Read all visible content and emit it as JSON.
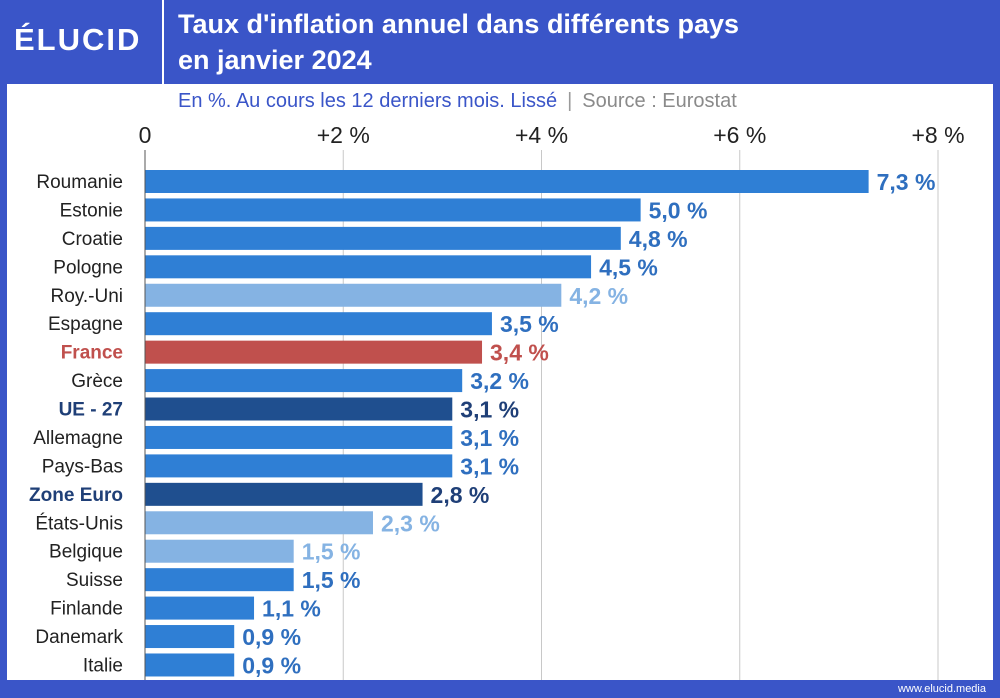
{
  "brand": {
    "logo": "ÉLUCID",
    "footer": "www.elucid.media"
  },
  "header": {
    "title_line1": "Taux d'inflation annuel dans différents pays",
    "title_line2": "en janvier 2024",
    "subtitle": "En %. Au cours les 12 derniers mois. Lissé",
    "separator": "|",
    "source": "Source : Eurostat"
  },
  "colors": {
    "bar_default": "#2f7fd5",
    "bar_light": "#85b3e3",
    "bar_france": "#c0504d",
    "bar_dark": "#1f4f8f",
    "label_default": "#2f6fbf",
    "label_light": "#85b3e3",
    "label_france": "#c0504d",
    "label_dark": "#1f3f77",
    "country_default": "#222222",
    "gridline": "#c8c8c8"
  },
  "chart_data": {
    "type": "bar",
    "orientation": "horizontal",
    "xlim": [
      0,
      8
    ],
    "ticks": [
      {
        "value": 0,
        "label": "0"
      },
      {
        "value": 2,
        "label": "+2 %"
      },
      {
        "value": 4,
        "label": "+4 %"
      },
      {
        "value": 6,
        "label": "+6 %"
      },
      {
        "value": 8,
        "label": "+8 %"
      }
    ],
    "grid": true,
    "categories": [
      "Roumanie",
      "Estonie",
      "Croatie",
      "Pologne",
      "Roy.-Uni",
      "Espagne",
      "France",
      "Grèce",
      "UE - 27",
      "Allemagne",
      "Pays-Bas",
      "Zone Euro",
      "États-Unis",
      "Belgique",
      "Suisse",
      "Finlande",
      "Danemark",
      "Italie"
    ],
    "values": [
      7.3,
      5.0,
      4.8,
      4.5,
      4.2,
      3.5,
      3.4,
      3.2,
      3.1,
      3.1,
      3.1,
      2.8,
      2.3,
      1.5,
      1.5,
      1.1,
      0.9,
      0.9
    ],
    "value_labels": [
      "7,3 %",
      "5,0 %",
      "4,8 %",
      "4,5 %",
      "4,2 %",
      "3,5 %",
      "3,4 %",
      "3,2 %",
      "3,1 %",
      "3,1 %",
      "3,1 %",
      "2,8 %",
      "2,3 %",
      "1,5 %",
      "1,5 %",
      "1,1 %",
      "0,9 %",
      "0,9 %"
    ],
    "styles": [
      "default",
      "default",
      "default",
      "default",
      "light",
      "default",
      "france",
      "default",
      "dark",
      "default",
      "default",
      "dark",
      "light",
      "light",
      "default",
      "default",
      "default",
      "default"
    ]
  }
}
